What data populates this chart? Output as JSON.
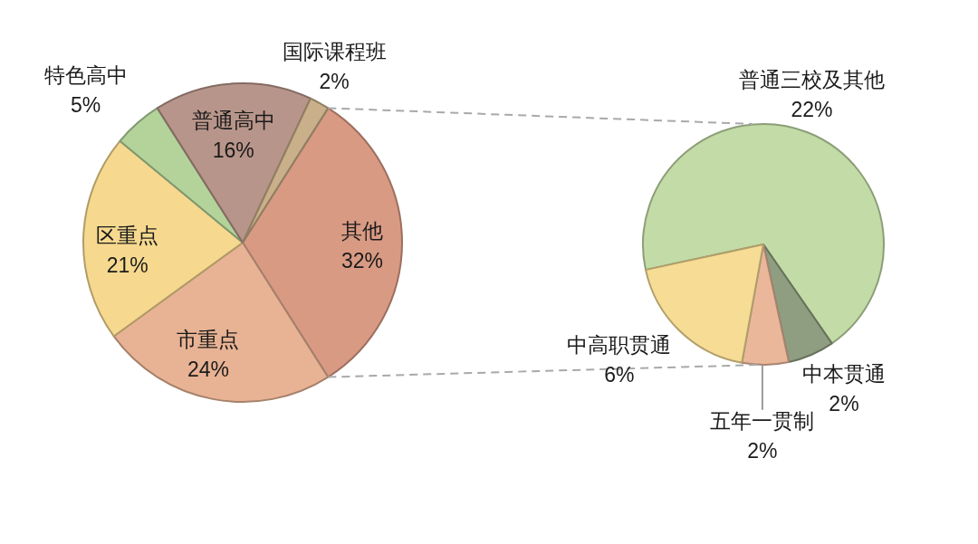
{
  "chart_data": [
    {
      "type": "pie",
      "categories": [
        "其他",
        "市重点",
        "区重点",
        "特色高中",
        "普通高中",
        "国际课程班"
      ],
      "values": [
        32,
        24,
        21,
        5,
        16,
        2
      ],
      "value_labels": [
        "32%",
        "24%",
        "21%",
        "5%",
        "16%",
        "2%"
      ],
      "colors": [
        "#d99a84",
        "#e8b394",
        "#f6d98f",
        "#b3d39a",
        "#b8958a",
        "#c9b08a"
      ]
    },
    {
      "type": "pie",
      "categories": [
        "普通三校及其他",
        "中本贯通",
        "五年一贯制",
        "中高职贯通"
      ],
      "values": [
        22,
        2,
        2,
        6
      ],
      "value_labels": [
        "22%",
        "2%",
        "2%",
        "6%"
      ],
      "colors": [
        "#c3dba6",
        "#8f9e80",
        "#ebb79b",
        "#f6dc94"
      ]
    }
  ]
}
